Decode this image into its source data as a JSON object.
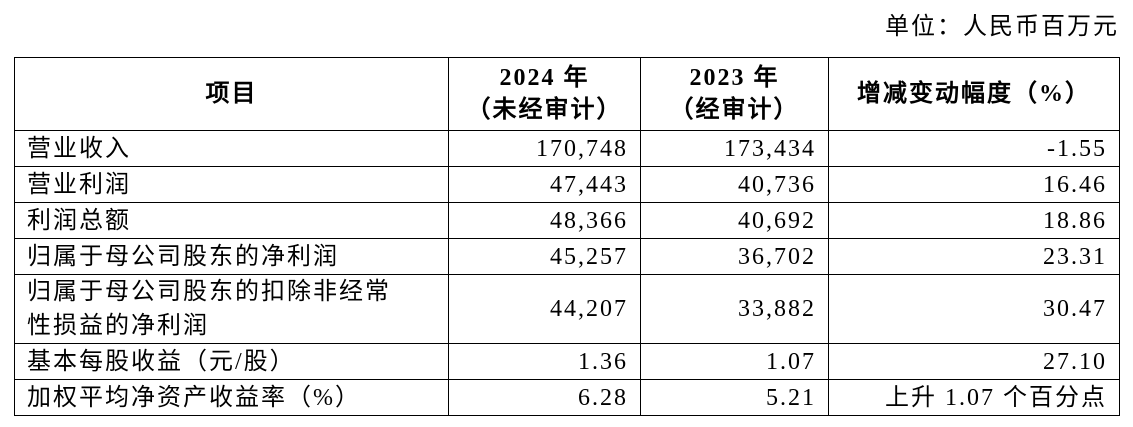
{
  "unit": "单位：人民币百万元",
  "table": {
    "header": [
      [
        "项目"
      ],
      [
        "2024 年",
        "（未经审计）"
      ],
      [
        "2023 年",
        "（经审计）"
      ],
      [
        "增减变动幅度（%）"
      ]
    ],
    "rows": [
      [
        [
          "营业收入"
        ],
        "170,748",
        "173,434",
        "-1.55"
      ],
      [
        [
          "营业利润"
        ],
        "47,443",
        "40,736",
        "16.46"
      ],
      [
        [
          "利润总额"
        ],
        "48,366",
        "40,692",
        "18.86"
      ],
      [
        [
          "归属于母公司股东的净利润"
        ],
        "45,257",
        "36,702",
        "23.31"
      ],
      [
        [
          "归属于母公司股东的扣除非经常",
          "性损益的净利润"
        ],
        "44,207",
        "33,882",
        "30.47"
      ],
      [
        [
          "基本每股收益（元/股）"
        ],
        "1.36",
        "1.07",
        "27.10"
      ],
      [
        [
          "加权平均净资产收益率（%）"
        ],
        "6.28",
        "5.21",
        "上升 1.07 个百分点"
      ]
    ]
  }
}
